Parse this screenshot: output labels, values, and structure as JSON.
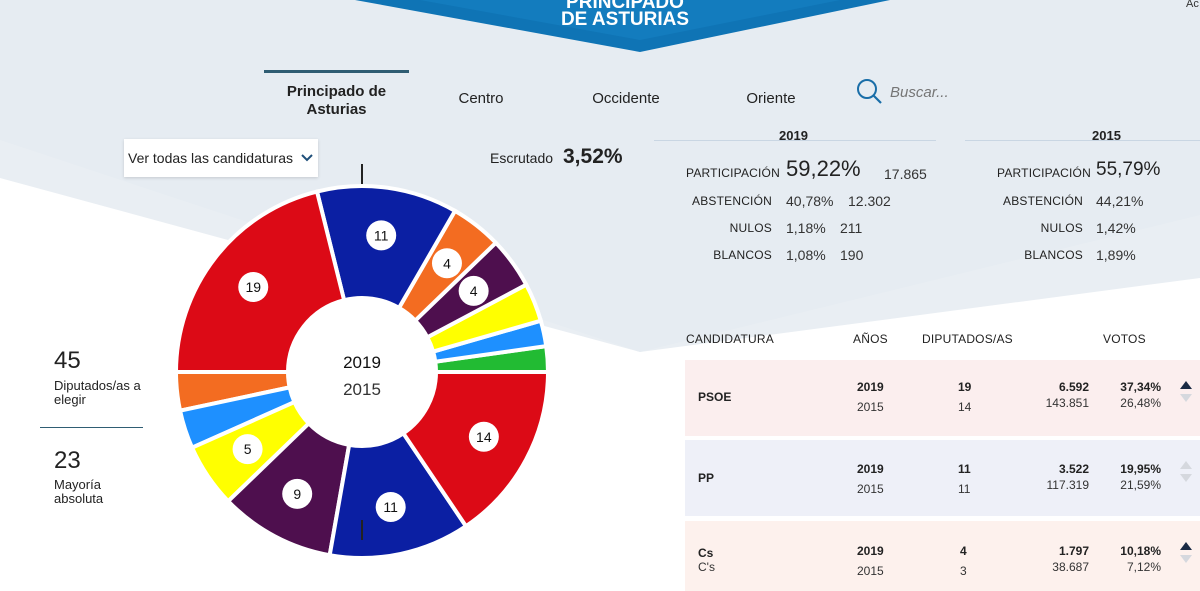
{
  "header": {
    "title_line1": "PRINCIPADO",
    "title_line2": "DE ASTURIAS",
    "corner_text": "Ac"
  },
  "tabs": [
    {
      "label": "Principado de Asturias",
      "active": true
    },
    {
      "label": "Centro"
    },
    {
      "label": "Occidente"
    },
    {
      "label": "Oriente"
    }
  ],
  "search": {
    "placeholder": "Buscar..."
  },
  "filter": {
    "selected": "Ver todas las candidaturas"
  },
  "scrutiny": {
    "label": "Escrutado",
    "value": "3,52%"
  },
  "seats": {
    "total": "45",
    "total_label": "Diputados/as a elegir",
    "majority": "23",
    "majority_label": "Mayoría absoluta"
  },
  "donut": {
    "year_current": "2019",
    "year_previous": "2015"
  },
  "chart_data": {
    "type": "pie",
    "series": [
      {
        "name": "2019",
        "slices": [
          {
            "seats": 19,
            "color": "#dc0a16"
          },
          {
            "seats": 11,
            "color": "#0b1fa3"
          },
          {
            "seats": 4,
            "color": "#f36c21"
          },
          {
            "seats": 4,
            "color": "#4e0f4e"
          },
          {
            "seats": 3,
            "color": "#ffff00"
          },
          {
            "seats": 2,
            "color": "#1e90ff"
          },
          {
            "seats": 2,
            "color": "#22bb33"
          }
        ]
      },
      {
        "name": "2015",
        "slices": [
          {
            "seats": 14,
            "color": "#dc0a16"
          },
          {
            "seats": 11,
            "color": "#0b1fa3"
          },
          {
            "seats": 9,
            "color": "#4e0f4e"
          },
          {
            "seats": 5,
            "color": "#ffff00"
          },
          {
            "seats": 3,
            "color": "#1e90ff"
          },
          {
            "seats": 3,
            "color": "#f36c21"
          }
        ]
      }
    ]
  },
  "stats": {
    "y2019": {
      "year": "2019",
      "participacion": {
        "label": "PARTICIPACIÓN",
        "pct": "59,22%",
        "count": "17.865"
      },
      "abstencion": {
        "label": "ABSTENCIÓN",
        "pct": "40,78%",
        "count": "12.302"
      },
      "nulos": {
        "label": "NULOS",
        "pct": "1,18%",
        "count": "211"
      },
      "blancos": {
        "label": "BLANCOS",
        "pct": "1,08%",
        "count": "190"
      }
    },
    "y2015": {
      "year": "2015",
      "participacion": {
        "label": "PARTICIPACIÓN",
        "pct": "55,79%"
      },
      "abstencion": {
        "label": "ABSTENCIÓN",
        "pct": "44,21%"
      },
      "nulos": {
        "label": "NULOS",
        "pct": "1,42%"
      },
      "blancos": {
        "label": "BLANCOS",
        "pct": "1,89%"
      }
    }
  },
  "table": {
    "headers": {
      "candidatura": "CANDIDATURA",
      "anos": "AÑOS",
      "diputados": "DIPUTADOS/AS",
      "votos": "VOTOS"
    },
    "rows": [
      {
        "name": "PSOE",
        "subname": "",
        "bg": "#fbeeee",
        "y1": "2019",
        "y2": "2015",
        "d1": "19",
        "d2": "14",
        "v1": "6.592",
        "v2": "143.851",
        "p1": "37,34%",
        "p2": "26,48%"
      },
      {
        "name": "PP",
        "subname": "",
        "bg": "#eef0f8",
        "y1": "2019",
        "y2": "2015",
        "d1": "11",
        "d2": "11",
        "v1": "3.522",
        "v2": "117.319",
        "p1": "19,95%",
        "p2": "21,59%"
      },
      {
        "name": "Cs",
        "subname": "C's",
        "bg": "#fdf1ed",
        "y1": "2019",
        "y2": "2015",
        "d1": "4",
        "d2": "3",
        "v1": "1.797",
        "v2": "38.687",
        "p1": "10,18%",
        "p2": "7,12%"
      }
    ]
  }
}
